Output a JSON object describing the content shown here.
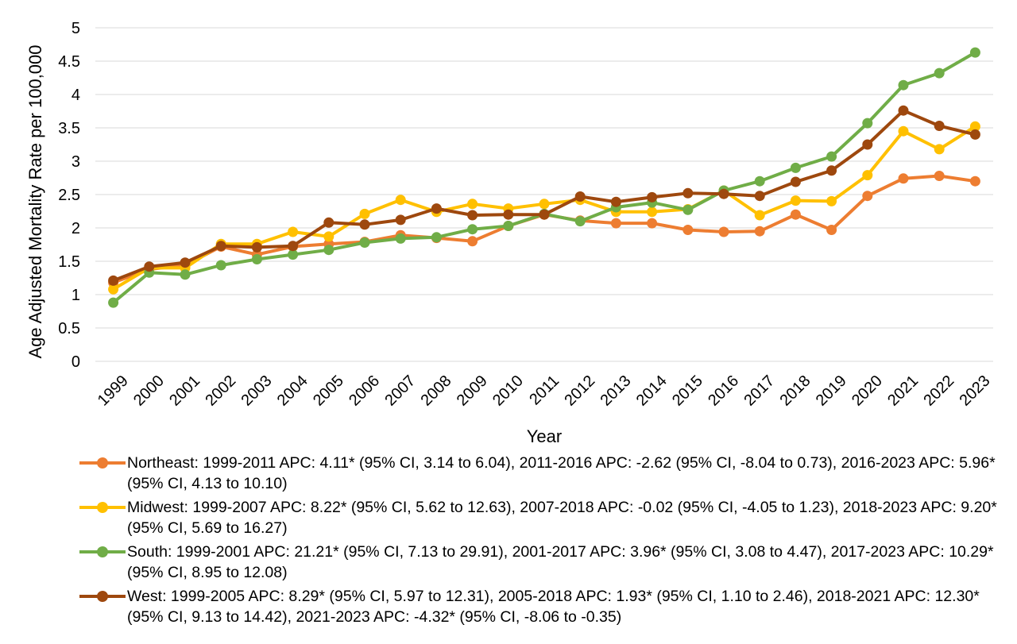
{
  "chart_data": {
    "type": "line",
    "title": "",
    "xlabel": "Year",
    "ylabel": "Age Adjusted Mortality Rate per 100,000",
    "ylim": [
      0,
      5
    ],
    "yticks": [
      "0",
      "0.5",
      "1",
      "1.5",
      "2",
      "2.5",
      "3",
      "3.5",
      "4",
      "4.5",
      "5"
    ],
    "grid": "horizontal",
    "legend_position": "bottom",
    "categories": [
      "1999",
      "2000",
      "2001",
      "2002",
      "2003",
      "2004",
      "2005",
      "2006",
      "2007",
      "2008",
      "2009",
      "2010",
      "2011",
      "2012",
      "2013",
      "2014",
      "2015",
      "2016",
      "2017",
      "2018",
      "2019",
      "2020",
      "2021",
      "2022",
      "2023"
    ],
    "series": [
      {
        "key": "northeast",
        "label": "Northeast: 1999-2011 APC: 4.11* (95% CI, 3.14 to 6.04), 2011-2016 APC: -2.62 (95% CI, -8.04 to 0.73), 2016-2023 APC: 5.96* (95% CI, 4.13 to 10.10)",
        "color": "#ED7D31",
        "values": [
          1.18,
          1.38,
          1.44,
          1.72,
          1.6,
          1.72,
          1.76,
          1.79,
          1.89,
          1.85,
          1.8,
          2.03,
          2.2,
          2.11,
          2.07,
          2.07,
          1.97,
          1.94,
          1.95,
          2.2,
          1.97,
          2.48,
          2.74,
          2.78,
          2.7
        ]
      },
      {
        "key": "midwest",
        "label": "Midwest: 1999-2007 APC: 8.22* (95% CI, 5.62 to 12.63), 2007-2018 APC: -0.02 (95% CI, -4.05 to 1.23), 2018-2023 APC: 9.20* (95% CI, 5.69 to 16.27)",
        "color": "#FFC000",
        "values": [
          1.08,
          1.4,
          1.4,
          1.76,
          1.76,
          1.94,
          1.87,
          2.21,
          2.42,
          2.24,
          2.36,
          2.29,
          2.36,
          2.42,
          2.24,
          2.24,
          2.28,
          2.56,
          2.19,
          2.41,
          2.4,
          2.79,
          3.45,
          3.18,
          3.52
        ]
      },
      {
        "key": "south",
        "label": "South: 1999-2001 APC: 21.21* (95% CI, 7.13 to 29.91), 2001-2017 APC: 3.96* (95% CI, 3.08 to 4.47), 2017-2023 APC: 10.29* (95% CI, 8.95 to 12.08)",
        "color": "#70AD47",
        "values": [
          0.88,
          1.33,
          1.3,
          1.44,
          1.53,
          1.6,
          1.67,
          1.78,
          1.84,
          1.86,
          1.98,
          2.03,
          2.21,
          2.1,
          2.31,
          2.38,
          2.27,
          2.56,
          2.7,
          2.9,
          3.07,
          3.57,
          4.14,
          4.32,
          4.63
        ]
      },
      {
        "key": "west",
        "label": "West: 1999-2005 APC: 8.29* (95% CI, 5.97 to 12.31), 2005-2018 APC: 1.93* (95% CI, 1.10 to 2.46), 2018-2021 APC: 12.30* (95% CI, 9.13 to 14.42), 2021-2023 APC: -4.32* (95% CI, -8.06 to -0.35)",
        "color": "#9E480E",
        "values": [
          1.21,
          1.42,
          1.48,
          1.73,
          1.71,
          1.73,
          2.08,
          2.05,
          2.12,
          2.29,
          2.19,
          2.2,
          2.2,
          2.47,
          2.39,
          2.46,
          2.52,
          2.51,
          2.48,
          2.69,
          2.86,
          3.25,
          3.76,
          3.53,
          3.4
        ]
      }
    ]
  }
}
